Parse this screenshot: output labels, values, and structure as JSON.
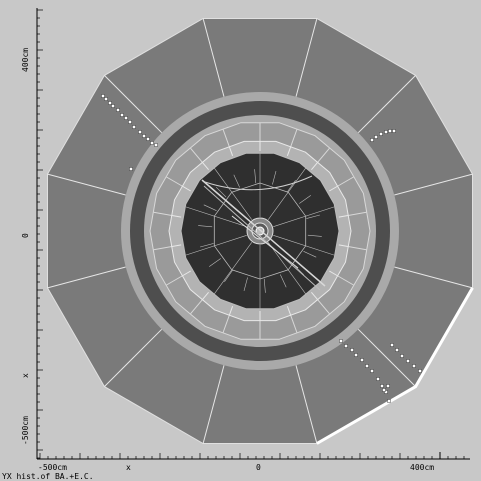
{
  "labels": {
    "y_top": "400cm",
    "y_mid": "0",
    "y_x": "x",
    "y_bottom": "-500cm",
    "x_left": "-500cm",
    "x_x": "x",
    "x_mid": "0",
    "x_right": "400cm",
    "caption": "YX hist.of BA.+E.C."
  },
  "colors": {
    "background": "#c8c8c8",
    "muon_chambers": "#7a7a7a",
    "coil_gap": "#a9a9a9",
    "solenoid": "#4e4e4e",
    "hcal": "#9a9a9a",
    "ecal": "#b3b3b3",
    "tracker": "#2f2f2f",
    "hits": "#ffffff"
  }
}
